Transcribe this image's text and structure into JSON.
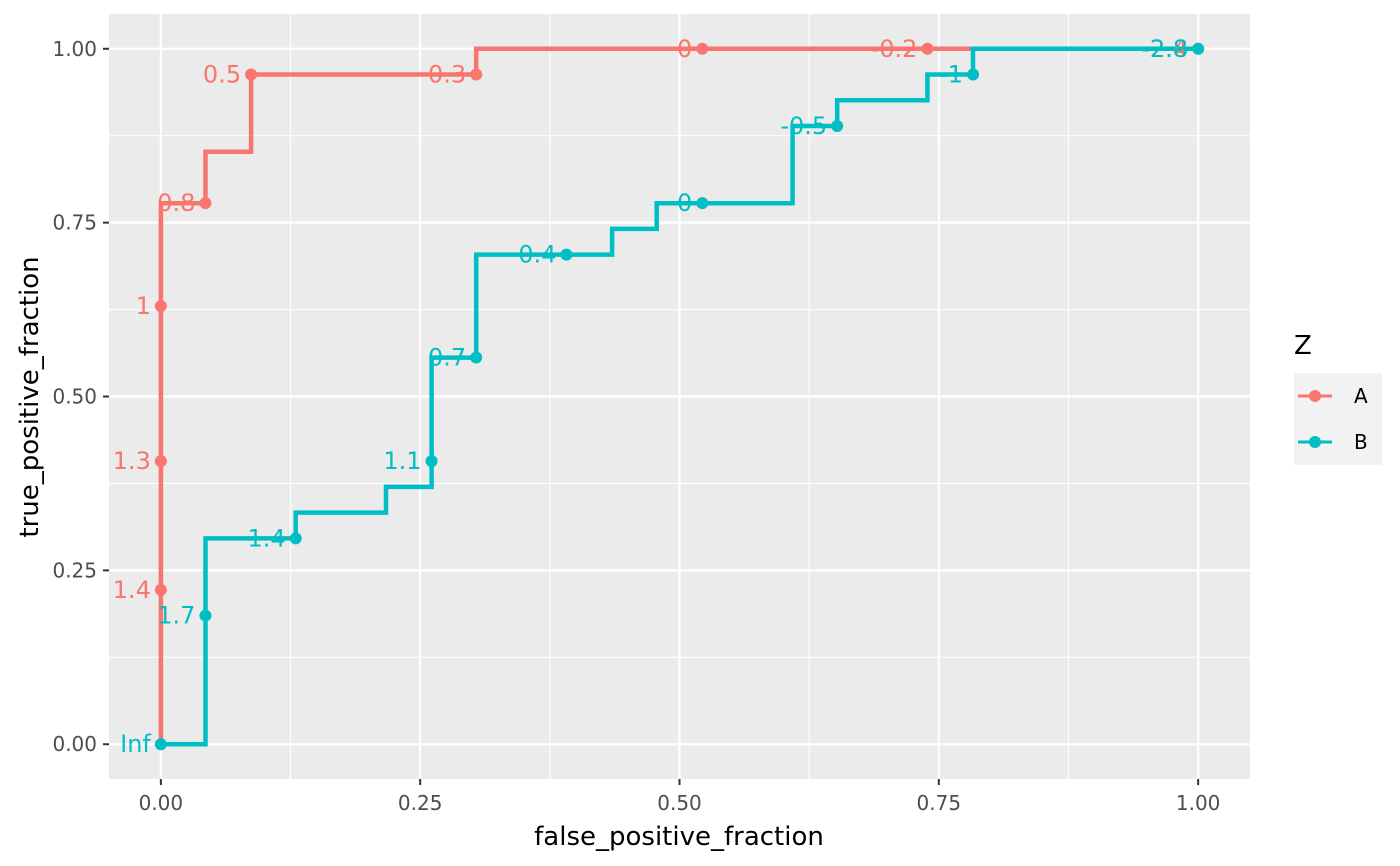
{
  "chart_data": {
    "type": "line",
    "xlabel": "false_positive_fraction",
    "ylabel": "true_positive_fraction",
    "xlim": [
      -0.05,
      1.05
    ],
    "ylim": [
      -0.05,
      1.05
    ],
    "x_ticks": [
      "0.00",
      "0.25",
      "0.50",
      "0.75",
      "1.00"
    ],
    "y_ticks": [
      "0.00",
      "0.25",
      "0.50",
      "0.75",
      "1.00"
    ],
    "grid": true,
    "legend": {
      "title": "Z",
      "position": "right"
    },
    "series": [
      {
        "name": "A",
        "color": "#F8766D",
        "step": [
          [
            0,
            0
          ],
          [
            0,
            0.778
          ],
          [
            0.043,
            0.778
          ],
          [
            0.043,
            0.852
          ],
          [
            0.087,
            0.852
          ],
          [
            0.087,
            0.963
          ],
          [
            0.304,
            0.963
          ],
          [
            0.304,
            1.0
          ],
          [
            1.0,
            1.0
          ]
        ],
        "points": [
          {
            "x": 0.0,
            "y": 0.222,
            "label": "1.4"
          },
          {
            "x": 0.0,
            "y": 0.407,
            "label": "1.3"
          },
          {
            "x": 0.0,
            "y": 0.63,
            "label": "1"
          },
          {
            "x": 0.043,
            "y": 0.778,
            "label": "0.8"
          },
          {
            "x": 0.087,
            "y": 0.963,
            "label": "0.5"
          },
          {
            "x": 0.304,
            "y": 0.963,
            "label": "0.3"
          },
          {
            "x": 0.522,
            "y": 1.0,
            "label": "0"
          },
          {
            "x": 0.739,
            "y": 1.0,
            "label": "-0.2"
          },
          {
            "x": 1.0,
            "y": 1.0,
            "label": "-2.4"
          }
        ]
      },
      {
        "name": "B",
        "color": "#00BFC4",
        "step": [
          [
            0,
            0
          ],
          [
            0.043,
            0
          ],
          [
            0.043,
            0.296
          ],
          [
            0.13,
            0.296
          ],
          [
            0.13,
            0.333
          ],
          [
            0.217,
            0.333
          ],
          [
            0.217,
            0.37
          ],
          [
            0.261,
            0.37
          ],
          [
            0.261,
            0.556
          ],
          [
            0.304,
            0.556
          ],
          [
            0.304,
            0.704
          ],
          [
            0.435,
            0.704
          ],
          [
            0.435,
            0.741
          ],
          [
            0.478,
            0.741
          ],
          [
            0.478,
            0.778
          ],
          [
            0.609,
            0.778
          ],
          [
            0.609,
            0.889
          ],
          [
            0.652,
            0.889
          ],
          [
            0.652,
            0.926
          ],
          [
            0.739,
            0.926
          ],
          [
            0.739,
            0.963
          ],
          [
            0.783,
            0.963
          ],
          [
            0.783,
            1.0
          ],
          [
            1.0,
            1.0
          ]
        ],
        "points": [
          {
            "x": 0.0,
            "y": 0.0,
            "label": "Inf"
          },
          {
            "x": 0.043,
            "y": 0.185,
            "label": "1.7"
          },
          {
            "x": 0.13,
            "y": 0.296,
            "label": "1.4"
          },
          {
            "x": 0.261,
            "y": 0.407,
            "label": "1.1"
          },
          {
            "x": 0.304,
            "y": 0.556,
            "label": "0.7"
          },
          {
            "x": 0.391,
            "y": 0.704,
            "label": "0.4"
          },
          {
            "x": 0.522,
            "y": 0.778,
            "label": "0"
          },
          {
            "x": 0.652,
            "y": 0.889,
            "label": "-0.5"
          },
          {
            "x": 0.783,
            "y": 0.963,
            "label": "-1"
          },
          {
            "x": 1.0,
            "y": 1.0,
            "label": "-2.8"
          }
        ]
      }
    ]
  }
}
